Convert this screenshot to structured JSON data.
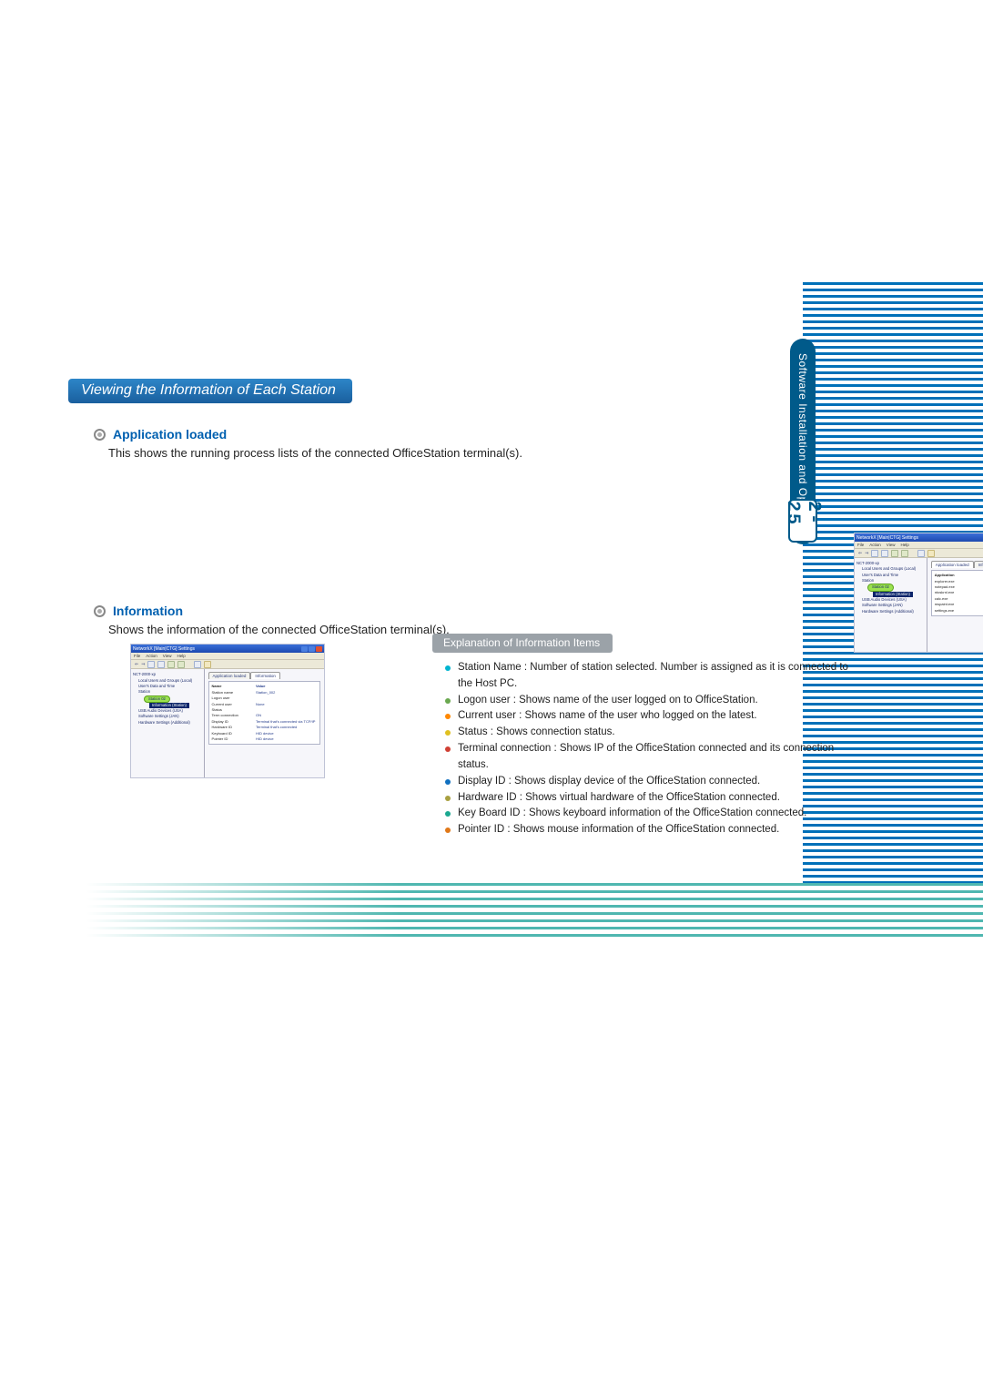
{
  "side_tab_label": "Software Installation and Operation",
  "page_number": "2-25",
  "heading": "Viewing the Information of Each Station",
  "section1": {
    "title": "Application loaded",
    "body": "This shows the running process lists of the connected OfficeStation terminal(s)."
  },
  "section2": {
    "title": "Information",
    "body": "Shows the information of the connected OfficeStation terminal(s)."
  },
  "explain_title": "Explanation of Information Items",
  "items": [
    "Station Name : Number of station selected. Number is assigned as it is connected to the Host PC.",
    "Logon user : Shows name of the user logged on to OfficeStation.",
    "Current user : Shows name of the user who logged on the latest.",
    "Status : Shows connection status.",
    "Terminal connection : Shows IP of the OfficeStation connected and its connection status.",
    "Display ID : Shows display device of the OfficeStation connected.",
    "Hardware ID : Shows virtual hardware of the OfficeStation connected.",
    "Key Board ID : Shows keyboard information of the OfficeStation connected.",
    "Pointer ID : Shows mouse information of the OfficeStation connected."
  ],
  "bullet_classes": [
    "bc-cyan",
    "bc-green",
    "bc-orange",
    "bc-yellow",
    "bc-red",
    "bc-blue",
    "bc-olive",
    "bc-teal",
    "bc-or2"
  ],
  "screenshot": {
    "window_title": "NetworkX [Main|CTG] Settings",
    "menu": [
      "File",
      "Action",
      "View",
      "Help"
    ],
    "tree": [
      {
        "cls": "",
        "txt": "NCT-2000-xp"
      },
      {
        "cls": "i1",
        "txt": "Local Users and Groups (Local)"
      },
      {
        "cls": "i1",
        "txt": "User's Data and Time"
      },
      {
        "cls": "i1",
        "txt": "Station"
      },
      {
        "cls": "i2 hl",
        "txt": "Station 02"
      },
      {
        "cls": "i3 sel",
        "txt": "Information (Station)"
      },
      {
        "cls": "i1",
        "txt": "USB Audio Devices (USA)"
      },
      {
        "cls": "i1",
        "txt": "Software Settings (JAN)"
      },
      {
        "cls": "i1",
        "txt": "Hardware Settings (Additional)"
      }
    ],
    "tabs1": [
      "Application loaded",
      "Information"
    ],
    "apps": [
      "explorer.exe",
      "notepad.exe",
      "ntoskrnl.exe",
      "calc.exe",
      "mspaint.exe",
      "settings.exe"
    ],
    "info_rows": [
      {
        "k": "Name",
        "v": "Value"
      },
      {
        "k": "Station name",
        "v": "Station_002"
      },
      {
        "k": "Logon user",
        "v": ""
      },
      {
        "k": "Current user",
        "v": "None"
      },
      {
        "k": "Status",
        "v": ""
      },
      {
        "k": "Term connection",
        "v": "ON"
      },
      {
        "k": "Display ID",
        "v": "Terminal that's connected via TCP/IP"
      },
      {
        "k": "Hardware ID",
        "v": "Terminal that's connected"
      },
      {
        "k": "Keyboard ID",
        "v": "HID device"
      },
      {
        "k": "Pointer ID",
        "v": "HID device"
      }
    ]
  }
}
